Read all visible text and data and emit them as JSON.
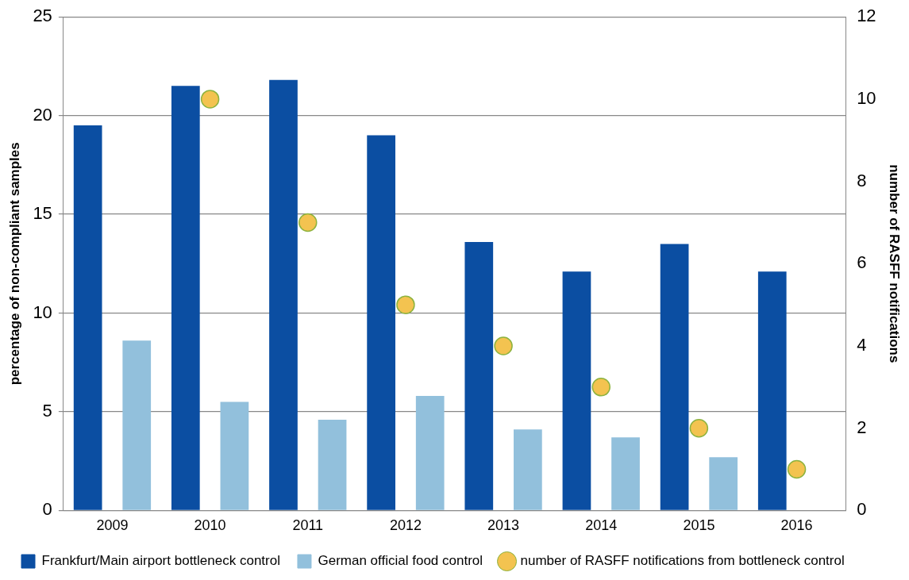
{
  "chart_data": {
    "type": "bar",
    "ylabel": "percentage of non-compliant samples",
    "y2label": "number of RASFF notifications",
    "categories": [
      "2009",
      "2010",
      "2011",
      "2012",
      "2013",
      "2014",
      "2015",
      "2016"
    ],
    "series": [
      {
        "name": "Frankfurt/Main airport bottleneck control",
        "color": "#0b4ea2",
        "values": [
          19.5,
          21.5,
          21.8,
          19.0,
          13.6,
          12.1,
          13.5,
          12.1
        ]
      },
      {
        "name": "German official food control",
        "color": "#92c0dc",
        "values": [
          8.6,
          5.5,
          4.6,
          5.8,
          4.1,
          3.7,
          2.7,
          null
        ]
      },
      {
        "name": "number of RASFF notifications from bottleneck control",
        "type": "scatter",
        "axis": "y2",
        "marker": "circle",
        "color": "#f3c350",
        "values": [
          null,
          10,
          7,
          5,
          4,
          3,
          2,
          1
        ]
      }
    ],
    "ylim": [
      0,
      25
    ],
    "yticks": [
      0,
      5,
      10,
      15,
      20,
      25
    ],
    "y2lim": [
      0,
      12
    ],
    "y2ticks": [
      0,
      2,
      4,
      6,
      8,
      10,
      12
    ],
    "grid": "y",
    "legend": "bottom"
  }
}
